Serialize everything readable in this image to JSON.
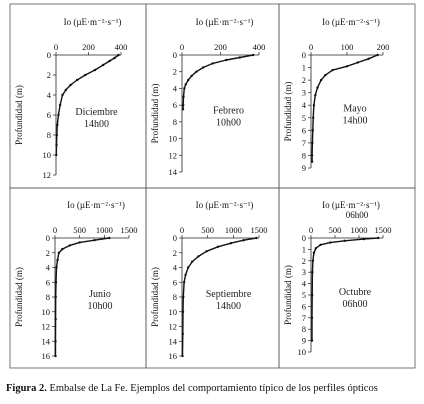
{
  "caption": {
    "label": "Figura 2.",
    "text": "Embalse de La Fe. Ejemplos del comportamiento típico de los perfiles ópticos"
  },
  "chart_data": [
    {
      "type": "line",
      "panel": "Diciembre",
      "xlabel": "Io (µE·m⁻²·s⁻¹)",
      "ylabel": "Profundidad (m)",
      "label_line1": "Diciembre",
      "label_line2": "14h00",
      "xlim": [
        0,
        400
      ],
      "xticks": [
        0,
        200,
        400
      ],
      "ylim": [
        0,
        12
      ],
      "yticks": [
        0,
        2,
        4,
        6,
        8,
        10,
        12
      ],
      "x": [
        385,
        360,
        330,
        290,
        240,
        180,
        130,
        90,
        60,
        40,
        25,
        15,
        8,
        5,
        3,
        2
      ],
      "y": [
        0,
        0.3,
        0.6,
        1,
        1.5,
        2,
        2.5,
        3,
        3.5,
        4,
        5,
        6,
        7,
        8,
        9,
        10
      ]
    },
    {
      "type": "line",
      "panel": "Febrero",
      "xlabel": "Io (µE·m⁻²·s⁻¹)",
      "ylabel": "Profundidad (m)",
      "label_line1": "Febrero",
      "label_line2": "10h00",
      "xlim": [
        0,
        400
      ],
      "xticks": [
        0,
        200,
        400
      ],
      "ylim": [
        0,
        14
      ],
      "yticks": [
        0,
        2,
        4,
        6,
        8,
        10,
        12,
        14
      ],
      "x": [
        370,
        300,
        230,
        160,
        110,
        75,
        50,
        32,
        20,
        12,
        8,
        6,
        5
      ],
      "y": [
        0,
        0.3,
        0.6,
        1,
        1.5,
        2,
        2.5,
        3,
        3.5,
        4,
        5,
        6,
        6.5
      ]
    },
    {
      "type": "line",
      "panel": "Mayo",
      "xlabel": "Io (µE·m⁻²·s⁻¹)",
      "ylabel": "Profundidad (m)",
      "label_line1": "Mayo",
      "label_line2": "14h00",
      "xlim": [
        0,
        200
      ],
      "xticks": [
        0,
        100,
        200
      ],
      "ylim": [
        0,
        9
      ],
      "yticks": [
        0,
        1,
        2,
        3,
        4,
        5,
        6,
        7,
        8,
        9
      ],
      "x": [
        185,
        160,
        130,
        100,
        60,
        40,
        28,
        18,
        12,
        8,
        6,
        5,
        4,
        3,
        3
      ],
      "y": [
        0,
        0.3,
        0.6,
        0.9,
        1.2,
        1.6,
        2,
        2.6,
        3.2,
        4,
        5,
        6,
        7,
        8,
        8.5
      ]
    },
    {
      "type": "line",
      "panel": "Junio",
      "xlabel": "Io (µE·m⁻²·s⁻¹)",
      "ylabel": "Profundidad (m)",
      "label_line1": "Junio",
      "label_line2": "10h00",
      "xlim": [
        0,
        1500
      ],
      "xticks": [
        0,
        500,
        1000,
        1500
      ],
      "ylim": [
        0,
        16
      ],
      "yticks": [
        0,
        2,
        4,
        6,
        8,
        10,
        12,
        14,
        16
      ],
      "x": [
        1100,
        800,
        500,
        300,
        150,
        80,
        50,
        30,
        20,
        15,
        12,
        10,
        10
      ],
      "y": [
        0,
        0.3,
        0.6,
        1,
        1.5,
        2,
        3,
        4,
        6,
        8,
        11,
        14,
        16
      ]
    },
    {
      "type": "line",
      "panel": "Septiembre",
      "xlabel": "Io (µE·m⁻²·s⁻¹)",
      "ylabel": "Profundidad (m)",
      "label_line1": "Septiembre",
      "label_line2": "14h00",
      "xlim": [
        0,
        1500
      ],
      "xticks": [
        0,
        500,
        1000,
        1500
      ],
      "ylim": [
        0,
        16
      ],
      "yticks": [
        0,
        2,
        4,
        6,
        8,
        10,
        12,
        14,
        16
      ],
      "x": [
        1450,
        1200,
        950,
        700,
        480,
        320,
        200,
        120,
        70,
        40,
        25,
        20,
        15,
        10
      ],
      "y": [
        0,
        0.3,
        0.7,
        1.2,
        1.8,
        2.5,
        3.2,
        4,
        5,
        6,
        8,
        10,
        13,
        16
      ]
    },
    {
      "type": "line",
      "panel": "Octubre",
      "xlabel": "Io (µE·m⁻²·s⁻¹)",
      "ylabel": "Profundidad (m)",
      "label_line1": "Octubre",
      "label_line2": "06h00",
      "top_label": "06h00",
      "xlim": [
        0,
        1500
      ],
      "xticks": [
        0,
        500,
        1000,
        1500
      ],
      "ylim": [
        0,
        10
      ],
      "yticks": [
        0,
        1,
        2,
        3,
        4,
        5,
        6,
        7,
        8,
        9,
        10
      ],
      "x": [
        1400,
        1100,
        700,
        400,
        200,
        100,
        60,
        40,
        30,
        25,
        20,
        20
      ],
      "y": [
        0,
        0.1,
        0.25,
        0.4,
        0.6,
        0.9,
        1.3,
        2,
        3,
        5,
        7,
        9
      ]
    }
  ]
}
